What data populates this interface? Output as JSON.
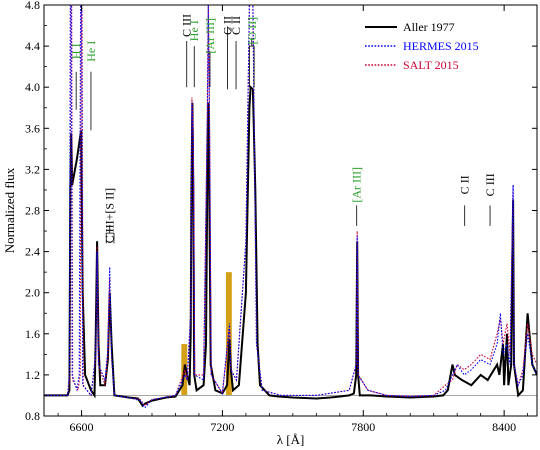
{
  "chart_data": {
    "type": "line",
    "xlabel": "λ [Å]",
    "ylabel": "Normalized flux",
    "xlim": [
      6440,
      8540
    ],
    "ylim": [
      0.8,
      4.8
    ],
    "xticks": [
      6600,
      7200,
      7800,
      8400
    ],
    "yticks": [
      0.8,
      1.2,
      1.6,
      2.0,
      2.4,
      2.8,
      3.2,
      3.6,
      4.0,
      4.4,
      4.8
    ],
    "ytick_labels": [
      "0.8",
      "1.2",
      "1.6",
      "2.0",
      "2.4",
      "2.8",
      "3.2",
      "3.6",
      "4.0",
      "4.4",
      "4.8"
    ],
    "xtick_labels": [
      "6600",
      "7200",
      "7800",
      "8400"
    ],
    "grid": false,
    "legend_position": "top-right",
    "continuum": 1.0,
    "series": [
      {
        "name": "Aller 1977",
        "color": "#000000",
        "style": "solid",
        "points": [
          [
            6440,
            1.0
          ],
          [
            6500,
            1.0
          ],
          [
            6540,
            1.0
          ],
          [
            6548,
            1.05
          ],
          [
            6552,
            3.0
          ],
          [
            6556,
            3.55
          ],
          [
            6560,
            3.05
          ],
          [
            6580,
            3.3
          ],
          [
            6598,
            3.58
          ],
          [
            6605,
            2.0
          ],
          [
            6615,
            1.2
          ],
          [
            6640,
            1.05
          ],
          [
            6655,
            1.0
          ],
          [
            6660,
            1.5
          ],
          [
            6666,
            2.5
          ],
          [
            6672,
            1.5
          ],
          [
            6680,
            1.1
          ],
          [
            6700,
            1.1
          ],
          [
            6712,
            1.35
          ],
          [
            6720,
            2.0
          ],
          [
            6728,
            1.5
          ],
          [
            6740,
            1.0
          ],
          [
            6800,
            0.98
          ],
          [
            6840,
            0.97
          ],
          [
            6860,
            0.9
          ],
          [
            6870,
            0.92
          ],
          [
            6900,
            0.95
          ],
          [
            6960,
            0.98
          ],
          [
            7000,
            0.99
          ],
          [
            7030,
            1.1
          ],
          [
            7040,
            1.3
          ],
          [
            7050,
            1.2
          ],
          [
            7060,
            1.1
          ],
          [
            7065,
            1.6
          ],
          [
            7068,
            3.0
          ],
          [
            7072,
            3.85
          ],
          [
            7076,
            3.0
          ],
          [
            7080,
            1.2
          ],
          [
            7090,
            1.05
          ],
          [
            7120,
            1.1
          ],
          [
            7130,
            1.5
          ],
          [
            7136,
            3.2
          ],
          [
            7140,
            3.85
          ],
          [
            7144,
            3.0
          ],
          [
            7150,
            1.3
          ],
          [
            7170,
            1.05
          ],
          [
            7200,
            1.02
          ],
          [
            7220,
            1.1
          ],
          [
            7230,
            1.55
          ],
          [
            7236,
            1.25
          ],
          [
            7245,
            1.05
          ],
          [
            7270,
            1.1
          ],
          [
            7300,
            2.0
          ],
          [
            7315,
            3.8
          ],
          [
            7320,
            4.0
          ],
          [
            7330,
            3.98
          ],
          [
            7340,
            3.0
          ],
          [
            7350,
            1.5
          ],
          [
            7360,
            1.1
          ],
          [
            7400,
            1.0
          ],
          [
            7440,
            0.99
          ],
          [
            7500,
            0.98
          ],
          [
            7600,
            0.97
          ],
          [
            7660,
            0.98
          ],
          [
            7700,
            0.99
          ],
          [
            7740,
            1.0
          ],
          [
            7760,
            1.02
          ],
          [
            7770,
            1.2
          ],
          [
            7774,
            2.5
          ],
          [
            7778,
            1.2
          ],
          [
            7785,
            1.0
          ],
          [
            7830,
            1.0
          ],
          [
            7900,
            0.99
          ],
          [
            8000,
            0.98
          ],
          [
            8100,
            0.99
          ],
          [
            8140,
            1.0
          ],
          [
            8160,
            1.05
          ],
          [
            8180,
            1.3
          ],
          [
            8190,
            1.2
          ],
          [
            8220,
            1.15
          ],
          [
            8260,
            1.1
          ],
          [
            8300,
            1.2
          ],
          [
            8330,
            1.15
          ],
          [
            8370,
            1.3
          ],
          [
            8380,
            1.2
          ],
          [
            8395,
            1.5
          ],
          [
            8400,
            1.1
          ],
          [
            8412,
            1.6
          ],
          [
            8418,
            1.1
          ],
          [
            8430,
            1.3
          ],
          [
            8438,
            2.9
          ],
          [
            8442,
            1.3
          ],
          [
            8460,
            1.0
          ],
          [
            8480,
            1.05
          ],
          [
            8500,
            1.8
          ],
          [
            8520,
            1.3
          ],
          [
            8540,
            1.2
          ]
        ]
      },
      {
        "name": "HERMES 2015",
        "color": "#0000ff",
        "style": "dotted",
        "points": [
          [
            6440,
            1.0
          ],
          [
            6500,
            1.0
          ],
          [
            6540,
            1.0
          ],
          [
            6548,
            1.2
          ],
          [
            6552,
            4.8
          ],
          [
            6556,
            4.8
          ],
          [
            6560,
            1.2
          ],
          [
            6580,
            1.05
          ],
          [
            6590,
            1.2
          ],
          [
            6596,
            4.8
          ],
          [
            6600,
            4.8
          ],
          [
            6605,
            1.1
          ],
          [
            6640,
            1.0
          ],
          [
            6660,
            1.4
          ],
          [
            6666,
            2.4
          ],
          [
            6672,
            1.3
          ],
          [
            6700,
            1.15
          ],
          [
            6712,
            1.45
          ],
          [
            6720,
            2.25
          ],
          [
            6728,
            1.4
          ],
          [
            6740,
            1.0
          ],
          [
            6800,
            0.98
          ],
          [
            6850,
            0.95
          ],
          [
            6870,
            0.88
          ],
          [
            6900,
            0.96
          ],
          [
            7000,
            1.0
          ],
          [
            7040,
            1.2
          ],
          [
            7050,
            1.15
          ],
          [
            7065,
            1.8
          ],
          [
            7070,
            3.85
          ],
          [
            7076,
            3.5
          ],
          [
            7082,
            1.2
          ],
          [
            7120,
            1.15
          ],
          [
            7136,
            3.8
          ],
          [
            7140,
            4.8
          ],
          [
            7146,
            3.5
          ],
          [
            7152,
            1.2
          ],
          [
            7200,
            1.02
          ],
          [
            7230,
            1.7
          ],
          [
            7236,
            1.25
          ],
          [
            7260,
            1.15
          ],
          [
            7300,
            2.5
          ],
          [
            7315,
            4.8
          ],
          [
            7330,
            4.8
          ],
          [
            7345,
            1.5
          ],
          [
            7370,
            1.05
          ],
          [
            7450,
            1.0
          ],
          [
            7600,
            1.0
          ],
          [
            7740,
            1.05
          ],
          [
            7770,
            1.3
          ],
          [
            7774,
            2.55
          ],
          [
            7778,
            1.2
          ],
          [
            7820,
            1.05
          ],
          [
            7900,
            1.0
          ],
          [
            8000,
            0.99
          ],
          [
            8100,
            1.0
          ],
          [
            8150,
            1.05
          ],
          [
            8180,
            1.2
          ],
          [
            8200,
            1.3
          ],
          [
            8230,
            1.2
          ],
          [
            8260,
            1.25
          ],
          [
            8300,
            1.35
          ],
          [
            8340,
            1.3
          ],
          [
            8370,
            1.5
          ],
          [
            8384,
            1.8
          ],
          [
            8395,
            1.4
          ],
          [
            8412,
            1.5
          ],
          [
            8425,
            1.3
          ],
          [
            8438,
            3.05
          ],
          [
            8442,
            1.3
          ],
          [
            8460,
            1.1
          ],
          [
            8480,
            1.2
          ],
          [
            8500,
            1.6
          ],
          [
            8520,
            1.3
          ],
          [
            8540,
            1.2
          ]
        ]
      },
      {
        "name": "SALT 2015",
        "color": "#cc0033",
        "style": "dotted",
        "points": [
          [
            6440,
            1.0
          ],
          [
            6500,
            1.0
          ],
          [
            6540,
            1.0
          ],
          [
            6550,
            1.15
          ],
          [
            6554,
            4.8
          ],
          [
            6558,
            4.8
          ],
          [
            6562,
            1.15
          ],
          [
            6585,
            1.05
          ],
          [
            6594,
            1.2
          ],
          [
            6598,
            4.8
          ],
          [
            6602,
            4.8
          ],
          [
            6607,
            1.1
          ],
          [
            6640,
            1.0
          ],
          [
            6660,
            1.35
          ],
          [
            6666,
            2.45
          ],
          [
            6672,
            1.3
          ],
          [
            6700,
            1.1
          ],
          [
            6712,
            1.4
          ],
          [
            6720,
            2.15
          ],
          [
            6728,
            1.35
          ],
          [
            6740,
            1.0
          ],
          [
            6800,
            0.98
          ],
          [
            6850,
            0.96
          ],
          [
            6870,
            0.9
          ],
          [
            6900,
            0.96
          ],
          [
            7000,
            1.0
          ],
          [
            7040,
            1.25
          ],
          [
            7050,
            1.15
          ],
          [
            7065,
            1.8
          ],
          [
            7070,
            3.9
          ],
          [
            7076,
            3.55
          ],
          [
            7082,
            1.2
          ],
          [
            7120,
            1.2
          ],
          [
            7136,
            3.8
          ],
          [
            7140,
            4.8
          ],
          [
            7146,
            3.5
          ],
          [
            7152,
            1.2
          ],
          [
            7200,
            1.02
          ],
          [
            7230,
            1.65
          ],
          [
            7236,
            1.25
          ],
          [
            7260,
            1.15
          ],
          [
            7300,
            2.5
          ],
          [
            7315,
            4.8
          ],
          [
            7330,
            4.8
          ],
          [
            7345,
            1.5
          ],
          [
            7370,
            1.05
          ],
          [
            7450,
            1.0
          ],
          [
            7600,
            1.0
          ],
          [
            7740,
            1.05
          ],
          [
            7770,
            1.3
          ],
          [
            7774,
            2.6
          ],
          [
            7778,
            1.2
          ],
          [
            7820,
            1.05
          ],
          [
            7900,
            1.0
          ],
          [
            8000,
            0.99
          ],
          [
            8100,
            1.0
          ],
          [
            8150,
            1.1
          ],
          [
            8180,
            1.15
          ],
          [
            8200,
            1.3
          ],
          [
            8230,
            1.25
          ],
          [
            8260,
            1.3
          ],
          [
            8300,
            1.4
          ],
          [
            8340,
            1.35
          ],
          [
            8370,
            1.6
          ],
          [
            8384,
            1.75
          ],
          [
            8395,
            1.5
          ],
          [
            8412,
            1.7
          ],
          [
            8425,
            1.4
          ],
          [
            8438,
            3.05
          ],
          [
            8442,
            1.3
          ],
          [
            8460,
            1.1
          ],
          [
            8480,
            1.25
          ],
          [
            8500,
            1.7
          ],
          [
            8520,
            1.4
          ],
          [
            8540,
            1.3
          ]
        ]
      }
    ],
    "highlight_bands": [
      {
        "x": [
          7025,
          7050
        ],
        "y": [
          1.0,
          1.5
        ],
        "color": "#d4a017"
      },
      {
        "x": [
          7215,
          7240
        ],
        "y": [
          1.0,
          2.2
        ],
        "color": "#d4a017"
      }
    ],
    "annotations": [
      {
        "text": "H I",
        "x": 6577,
        "y_text": 4.35,
        "y_line": [
          3.78,
          4.15
        ],
        "color": "#2ca02c"
      },
      {
        "text": "He I",
        "x": 6640,
        "y_text": 4.35,
        "y_line": [
          3.58,
          4.15
        ],
        "color": "#2ca02c"
      },
      {
        "text": "C III+[S II]",
        "x": 6720,
        "y_text": 2.75,
        "y_line": [
          2.48,
          2.58
        ],
        "color": "#000000",
        "bracket": [
          6705,
          6738
        ]
      },
      {
        "text": "C III",
        "x": 7048,
        "y_text": 4.6,
        "y_line": [
          4.0,
          4.45
        ],
        "color": "#000000"
      },
      {
        "text": "He I",
        "x": 7080,
        "y_text": 4.55,
        "y_line": [
          4.0,
          4.4
        ],
        "color": "#2ca02c"
      },
      {
        "text": "[Ar III]",
        "x": 7147,
        "y_text": 4.5,
        "y_line": [
          4.0,
          4.35
        ],
        "color": "#2ca02c"
      },
      {
        "text": "C II",
        "x": 7222,
        "y_text": 4.6,
        "y_line": [
          3.98,
          4.45
        ],
        "color": "#000000",
        "bracket_to": 7238
      },
      {
        "text": "C II",
        "x": 7258,
        "y_text": 4.6,
        "y_line": [
          3.98,
          4.45
        ],
        "color": "#000000"
      },
      {
        "text": "[O II]",
        "x": 7325,
        "y_text": 4.55,
        "y_line": [
          4.0,
          4.4
        ],
        "color": "#2ca02c",
        "bracket": [
          7315,
          7335
        ]
      },
      {
        "text": "[Ar III]",
        "x": 7772,
        "y_text": 3.05,
        "y_line": [
          2.65,
          2.85
        ],
        "color": "#2ca02c"
      },
      {
        "text": "C II",
        "x": 8232,
        "y_text": 3.05,
        "y_line": [
          2.65,
          2.85
        ],
        "color": "#000000"
      },
      {
        "text": "C III",
        "x": 8340,
        "y_text": 3.05,
        "y_line": [
          2.65,
          2.85
        ],
        "color": "#000000"
      }
    ]
  }
}
